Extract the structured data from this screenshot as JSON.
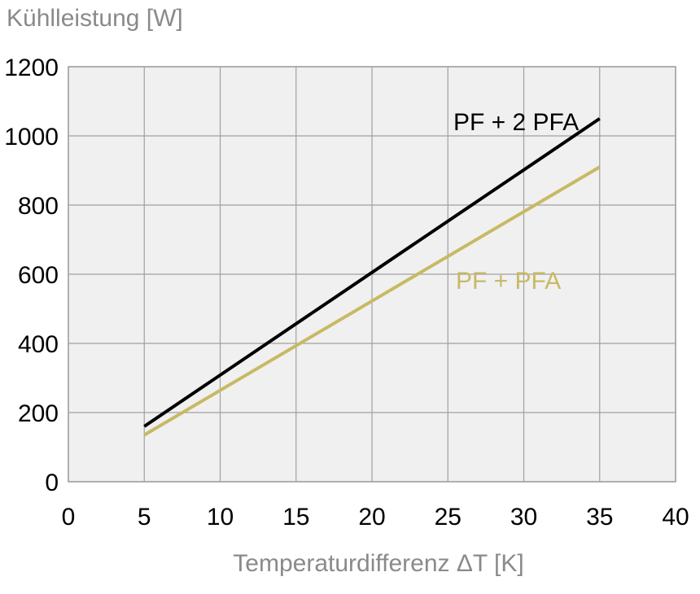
{
  "chart_data": {
    "type": "line",
    "title": "",
    "ylabel": "Kühlleistung [W]",
    "xlabel": "Temperaturdifferenz ΔT [K]",
    "xlim": [
      0,
      40
    ],
    "ylim": [
      0,
      1200
    ],
    "x_ticks": [
      "0",
      "5",
      "10",
      "15",
      "20",
      "25",
      "30",
      "35",
      "40"
    ],
    "y_ticks": [
      "0",
      "200",
      "400",
      "600",
      "800",
      "1000",
      "1200"
    ],
    "grid": true,
    "background": "#f0f0f0",
    "series": [
      {
        "name": "PF + 2 PFA",
        "color": "#000000",
        "x": [
          5,
          35
        ],
        "y": [
          160,
          1050
        ]
      },
      {
        "name": "PF + PFA",
        "color": "#c8b964",
        "x": [
          5,
          35
        ],
        "y": [
          135,
          910
        ]
      }
    ]
  }
}
